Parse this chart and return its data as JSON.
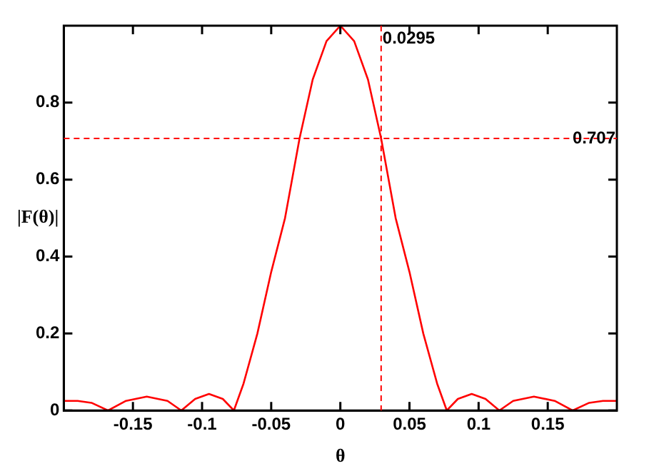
{
  "chart_data": {
    "type": "line",
    "xlabel": "θ",
    "ylabel": "|F(θ)|",
    "x": [
      -0.2,
      -0.19,
      -0.18,
      -0.168,
      -0.155,
      -0.14,
      -0.125,
      -0.115,
      -0.105,
      -0.095,
      -0.085,
      -0.077,
      -0.07,
      -0.06,
      -0.05,
      -0.04,
      -0.0295,
      -0.02,
      -0.01,
      0,
      0.01,
      0.02,
      0.0295,
      0.04,
      0.05,
      0.06,
      0.07,
      0.077,
      0.085,
      0.095,
      0.105,
      0.115,
      0.125,
      0.14,
      0.155,
      0.168,
      0.18,
      0.19,
      0.2
    ],
    "series": [
      {
        "color": "#ff0000",
        "values": [
          0.025,
          0.025,
          0.02,
          0,
          0.025,
          0.036,
          0.025,
          0,
          0.03,
          0.043,
          0.03,
          0,
          0.07,
          0.2,
          0.36,
          0.5,
          0.707,
          0.86,
          0.96,
          1.0,
          0.96,
          0.86,
          0.707,
          0.5,
          0.36,
          0.2,
          0.07,
          0,
          0.03,
          0.043,
          0.03,
          0,
          0.025,
          0.036,
          0.025,
          0,
          0.02,
          0.025,
          0.025
        ]
      }
    ],
    "xlim": [
      -0.2,
      0.2
    ],
    "xticks": [
      -0.15,
      -0.1,
      -0.05,
      0,
      0.05,
      0.1,
      0.15
    ],
    "ylim": [
      0,
      1
    ],
    "yticks": [
      0,
      0.2,
      0.4,
      0.6,
      0.8
    ],
    "ref_lines": [
      {
        "axis": "x",
        "value": 0.0295,
        "label": "0.0295",
        "color": "#ff0000",
        "line_style": "dashed"
      },
      {
        "axis": "y",
        "value": 0.707,
        "label": "0.707",
        "color": "#ff0000",
        "line_style": "dashed"
      }
    ],
    "grid": false,
    "legend": false,
    "marker": "none",
    "line_style": "solid"
  }
}
